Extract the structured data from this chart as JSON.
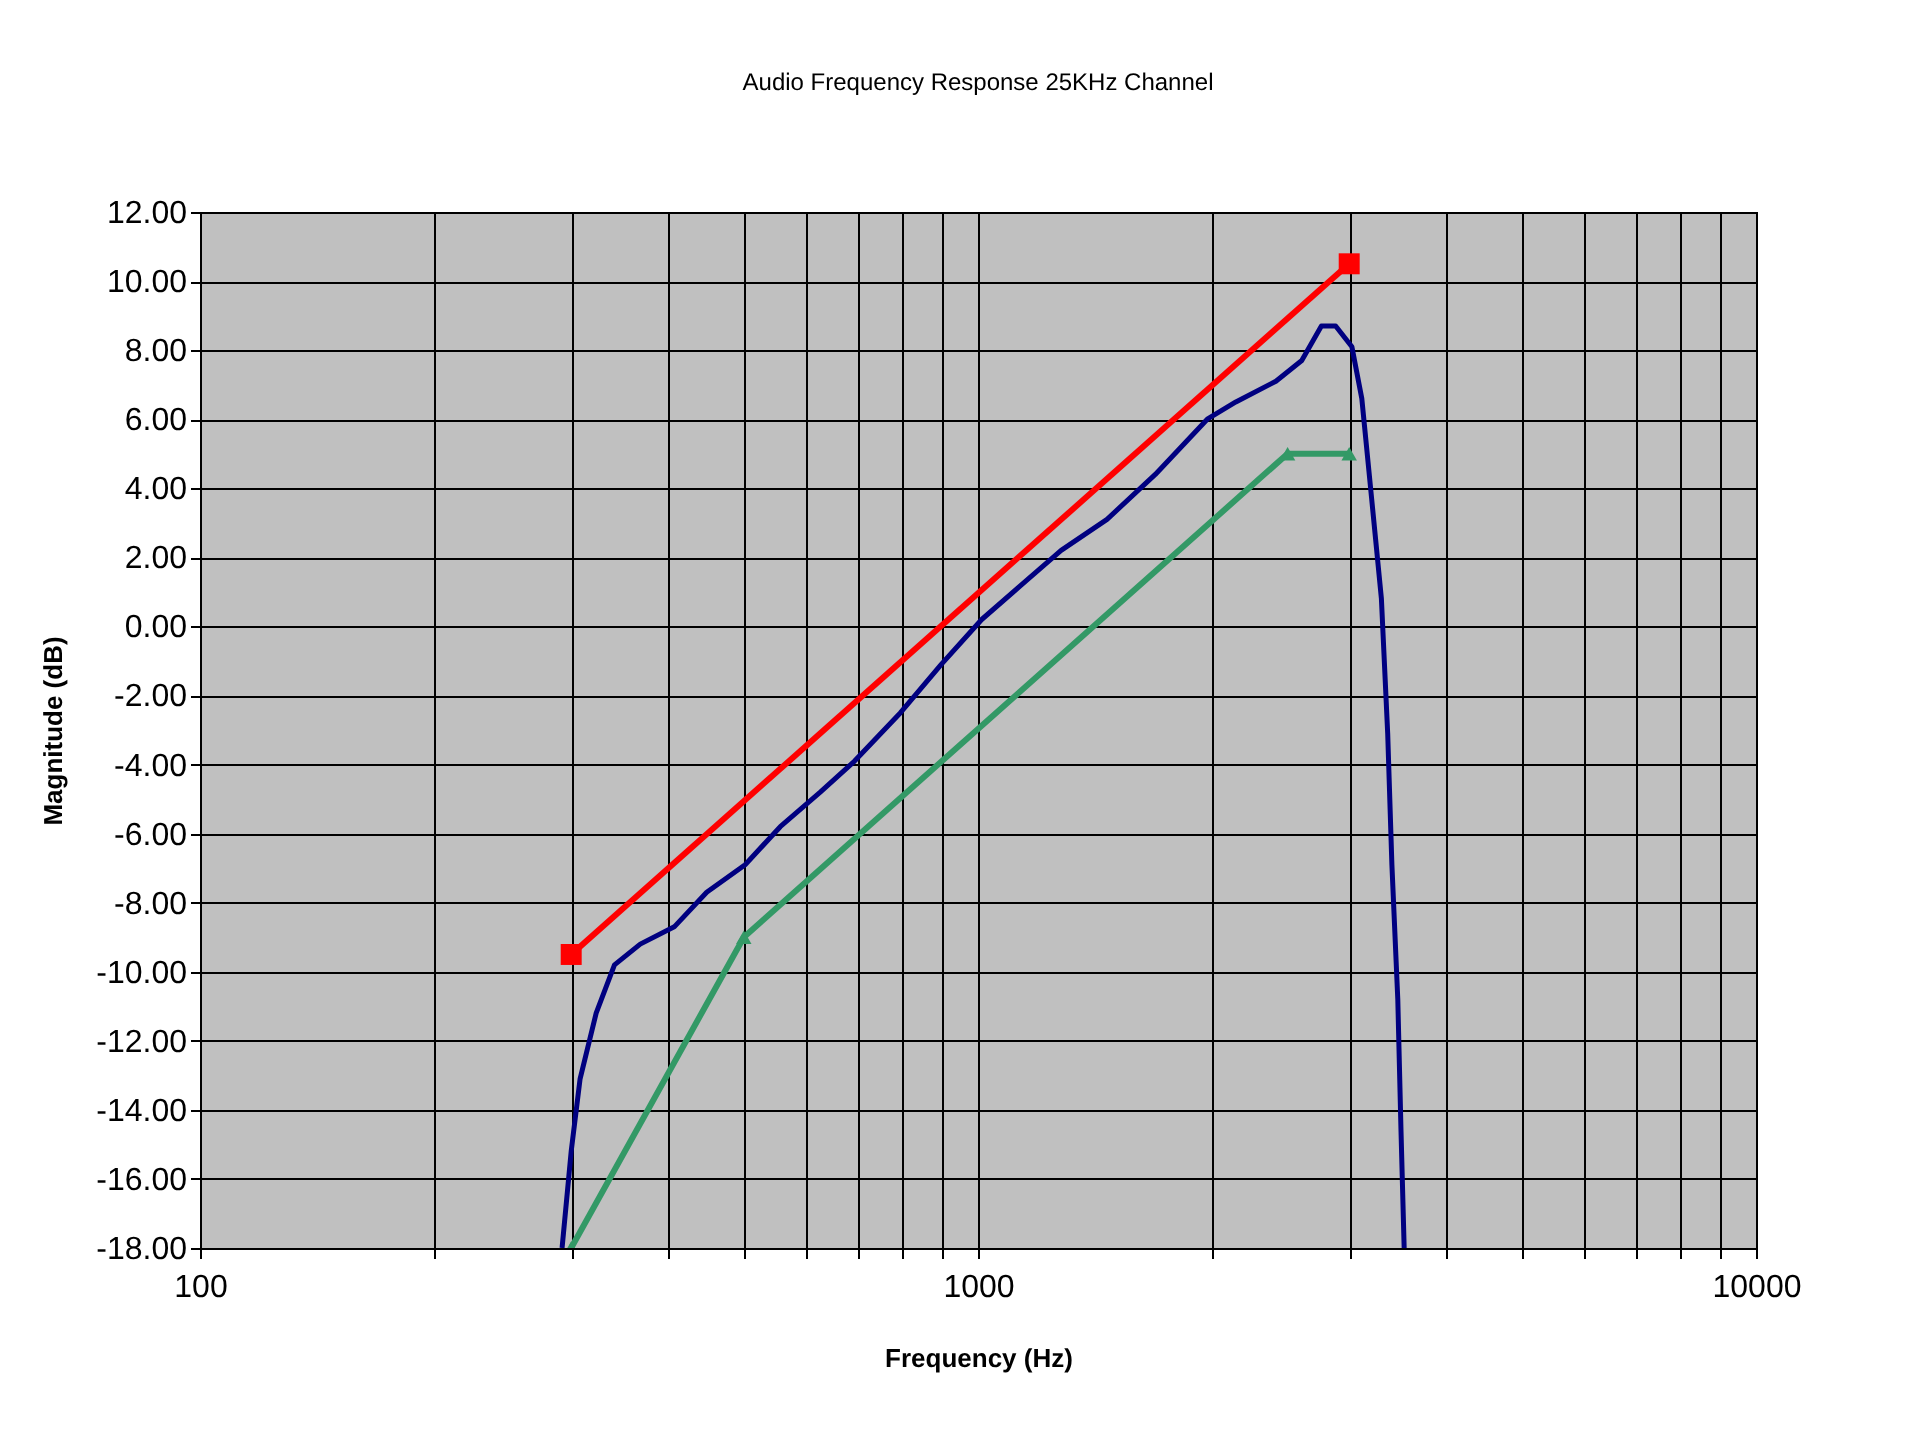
{
  "chart_data": {
    "type": "line",
    "title": "Audio Frequency Response 25KHz Channel",
    "xlabel": "Frequency (Hz)",
    "ylabel": "Magnitude (dB)",
    "log": "x",
    "grid": true,
    "xlim": [
      100,
      10000
    ],
    "ylim": [
      -18,
      12
    ],
    "xticks": [
      100,
      {
        "value": 200,
        "label": null
      },
      {
        "value": 300,
        "label": null
      },
      {
        "value": 400,
        "label": null
      },
      {
        "value": 500,
        "label": null
      },
      {
        "value": 600,
        "label": null
      },
      {
        "value": 700,
        "label": null
      },
      {
        "value": 800,
        "label": null
      },
      {
        "value": 900,
        "label": null
      },
      1000,
      {
        "value": 2000,
        "label": null
      },
      {
        "value": 3000,
        "label": null
      },
      {
        "value": 4000,
        "label": null
      },
      {
        "value": 5000,
        "label": null
      },
      {
        "value": 6000,
        "label": null
      },
      {
        "value": 7000,
        "label": null
      },
      {
        "value": 8000,
        "label": null
      },
      {
        "value": 9000,
        "label": null
      },
      10000
    ],
    "yticks": [
      {
        "value": -18,
        "label": "-18.00"
      },
      {
        "value": -16,
        "label": "-16.00"
      },
      {
        "value": -14,
        "label": "-14.00"
      },
      {
        "value": -12,
        "label": "-12.00"
      },
      {
        "value": -10,
        "label": "-10.00"
      },
      {
        "value": -8,
        "label": "-8.00"
      },
      {
        "value": -6,
        "label": "-6.00"
      },
      {
        "value": -4,
        "label": "-4.00"
      },
      {
        "value": -2,
        "label": "-2.00"
      },
      {
        "value": 0,
        "label": "0.00"
      },
      {
        "value": 2,
        "label": "2.00"
      },
      {
        "value": 4,
        "label": "4.00"
      },
      {
        "value": 6,
        "label": "6.00"
      },
      {
        "value": 8,
        "label": "8.00"
      },
      {
        "value": 10,
        "label": "10.00"
      },
      {
        "value": 12,
        "label": "12.00"
      }
    ],
    "series": [
      {
        "color": "#000080",
        "marker": "none",
        "x": [
          292,
          300,
          308,
          323,
          341,
          368,
          407,
          448,
          502,
          557,
          627,
          694,
          795,
          897,
          1011,
          1137,
          1279,
          1465,
          1690,
          1971,
          2145,
          2415,
          2607,
          2763,
          2882,
          3024,
          3114,
          3206,
          3300,
          3362,
          3404,
          3464,
          3497,
          3530
        ],
        "values": [
          -18,
          -15.2,
          -13.1,
          -11.2,
          -9.8,
          -9.2,
          -8.7,
          -7.7,
          -6.9,
          -5.8,
          -4.8,
          -3.9,
          -2.5,
          -1.1,
          0.2,
          1.2,
          2.2,
          3.1,
          4.4,
          6.0,
          6.5,
          7.1,
          7.7,
          8.7,
          8.7,
          8.1,
          6.6,
          3.7,
          0.8,
          -3.1,
          -6.9,
          -10.8,
          -14.6,
          -18
        ]
      },
      {
        "color": "#ff0000",
        "marker": "square",
        "x": [
          300,
          3000
        ],
        "values": [
          -9.5,
          10.5
        ]
      },
      {
        "color": "#339966",
        "marker": "triangle",
        "x": [
          300,
          500,
          2500,
          3000
        ],
        "values": [
          -18,
          -9,
          5,
          5
        ]
      }
    ]
  }
}
